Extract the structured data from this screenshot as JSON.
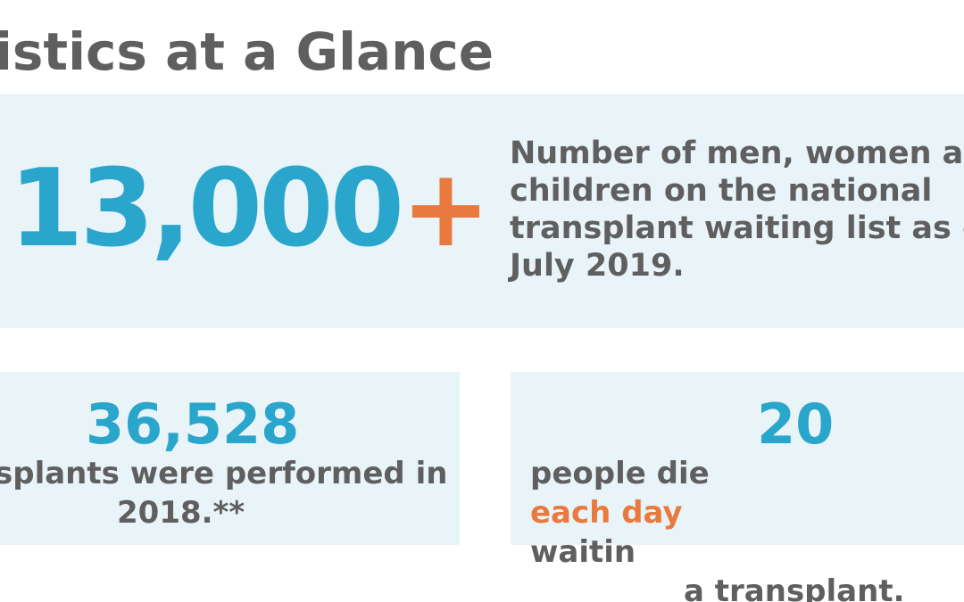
{
  "title": "istics at a Glance",
  "top_stat": {
    "number": "13,000",
    "suffix": "+",
    "description": [
      "Number of men, women an",
      "children on the national",
      "transplant waiting list as of",
      "July 2019."
    ]
  },
  "left_stat": {
    "number": "36,528",
    "text": [
      "splants were performed in",
      "2018.**"
    ]
  },
  "right_stat": {
    "number": "20",
    "text_before": "people die ",
    "highlight": "each day",
    "text_after": " waitin",
    "line2": "a transplant."
  },
  "colors": {
    "accent_blue": "#2aa5cb",
    "accent_orange": "#e97a3f",
    "text_gray": "#5f5f5f",
    "panel_bg": "#e9f4f9"
  }
}
